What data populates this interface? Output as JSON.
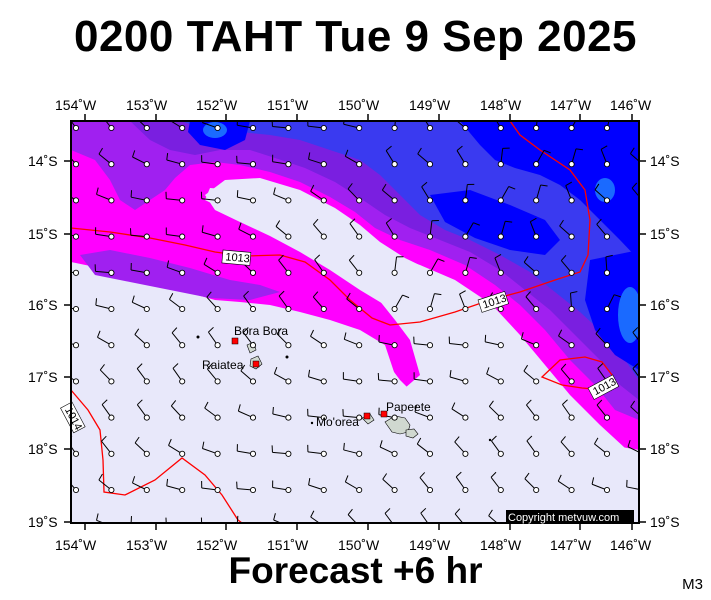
{
  "header": {
    "title": "0200 TAHT Tue 9 Sep 2025"
  },
  "footer": {
    "forecast": "Forecast +6 hr",
    "model_tag": "M3"
  },
  "map": {
    "longitude_ticks": [
      "154˚W",
      "153˚W",
      "152˚W",
      "151˚W",
      "150˚W",
      "149˚W",
      "148˚W",
      "147˚W",
      "146˚W"
    ],
    "latitude_ticks": [
      "14˚S",
      "15˚S",
      "16˚S",
      "17˚S",
      "18˚S",
      "19˚S"
    ],
    "places": {
      "bora_bora": "Bora Bora",
      "raiatea": "Raiatea",
      "moorea": "Mo'orea",
      "papeete": "Papeete"
    },
    "isobars": {
      "label_1013": "1013",
      "label_1014": "1014"
    },
    "copyright": "Copyright metvuw.com",
    "colors": {
      "background_fill": "#e8e8fa",
      "magenta": "#ff00ff",
      "purple": "#a020f0",
      "violet": "#7a1fe0",
      "blue": "#3a3af0",
      "deep_blue": "#0000ff",
      "azure": "#1a6aff",
      "isobar": "#ff0000",
      "land": "#d0d8d0"
    }
  }
}
